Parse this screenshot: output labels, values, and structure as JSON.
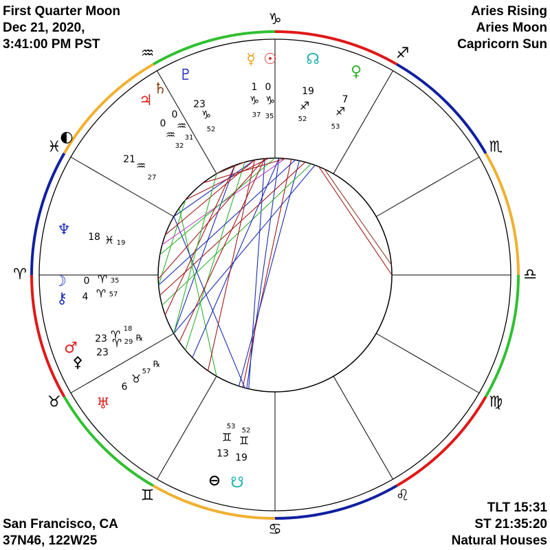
{
  "header": {
    "left": [
      "First Quarter Moon",
      "Dec 21, 2020,",
      "3:41:00 PM PST"
    ],
    "right": [
      "Aries Rising",
      "Aries Moon",
      "Capricorn Sun"
    ]
  },
  "footer": {
    "left": [
      "San Francisco, CA",
      "37N46, 122W25"
    ],
    "right": [
      "TLT 15:31",
      "ST 21:35:20",
      "Natural Houses"
    ]
  },
  "signs": [
    {
      "glyph": "♈",
      "color": "#e01818"
    },
    {
      "glyph": "♉",
      "color": "#30c030"
    },
    {
      "glyph": "♊",
      "color": "#f0b030"
    },
    {
      "glyph": "♋",
      "color": "#1020a0"
    },
    {
      "glyph": "♌",
      "color": "#e01818"
    },
    {
      "glyph": "♍",
      "color": "#30c030"
    },
    {
      "glyph": "♎",
      "color": "#f0b030"
    },
    {
      "glyph": "♏",
      "color": "#1020a0"
    },
    {
      "glyph": "♐",
      "color": "#e01818"
    },
    {
      "glyph": "♑",
      "color": "#30c030"
    },
    {
      "glyph": "♒",
      "color": "#f0b030"
    },
    {
      "glyph": "♓",
      "color": "#1020a0"
    }
  ],
  "points": [
    {
      "glyph": "☿",
      "color": "#f0a020"
    },
    {
      "glyph": "☉",
      "color": "#e02020"
    },
    {
      "glyph": "☊",
      "color": "#20b0b0"
    },
    {
      "glyph": "♀",
      "color": "#30b030"
    },
    {
      "glyph": "♇",
      "color": "#2030c0"
    },
    {
      "glyph": "♄",
      "color": "#8b4513"
    },
    {
      "glyph": "♃",
      "color": "#e02020"
    },
    {
      "glyph": "◐",
      "color": "#000000"
    },
    {
      "glyph": "♆",
      "color": "#2030c0"
    },
    {
      "glyph": "☽",
      "color": "#2030c0"
    },
    {
      "glyph": "⚷",
      "color": "#2030c0"
    },
    {
      "glyph": "♂",
      "color": "#e02020"
    },
    {
      "glyph": "⚴",
      "color": "#000000"
    },
    {
      "glyph": "♅",
      "color": "#e02020"
    },
    {
      "glyph": "⊖",
      "color": "#000000"
    },
    {
      "glyph": "☋",
      "color": "#20b0b0"
    }
  ],
  "placements": [
    {
      "degree": 1,
      "sign": "♑",
      "minute": 37
    },
    {
      "degree": 0,
      "sign": "♑",
      "minute": 35
    },
    {
      "degree": 19,
      "sign": "♐",
      "minute": 52
    },
    {
      "degree": 7,
      "sign": "♐",
      "minute": 53
    },
    {
      "degree": 23,
      "sign": "♑",
      "minute": 52
    },
    {
      "degree": 0,
      "sign": "♒",
      "minute": 31
    },
    {
      "degree": 0,
      "sign": "♒",
      "minute": 32
    },
    {
      "degree": 21,
      "sign": "♒",
      "minute": 27
    },
    {
      "degree": 18,
      "sign": "♓",
      "minute": 19
    },
    {
      "degree": 0,
      "sign": "♈",
      "minute": 35
    },
    {
      "degree": 4,
      "sign": "♈",
      "minute": 57
    },
    {
      "degree": 23,
      "sign": "♈",
      "minute": 18,
      "retrograde": "℞"
    },
    {
      "degree": 23,
      "sign": "♈",
      "minute": 29
    },
    {
      "degree": 6,
      "sign": "♉",
      "minute": 57,
      "retrograde": "℞"
    },
    {
      "degree": 13,
      "sign": "♊",
      "minute": 53
    },
    {
      "degree": 19,
      "sign": "♊",
      "minute": 52
    }
  ]
}
